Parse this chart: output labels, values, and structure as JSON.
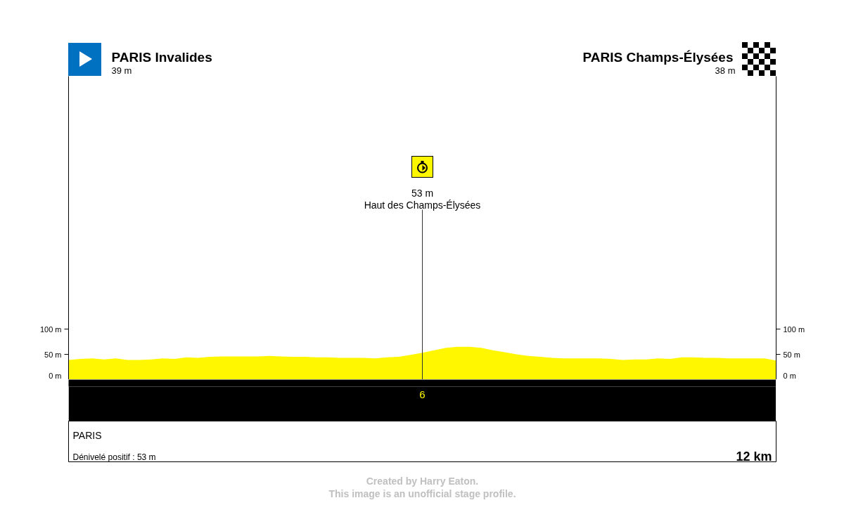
{
  "chart_data": {
    "type": "area",
    "color": "#fff700",
    "categories": [
      null,
      null,
      null,
      null,
      null,
      null,
      null,
      null,
      null,
      null,
      null,
      null,
      null,
      null,
      null,
      null,
      null,
      null,
      null,
      null,
      null,
      null,
      null,
      null,
      null,
      null,
      null,
      null,
      null,
      null,
      "6",
      null,
      null,
      null,
      null,
      null,
      null,
      null,
      null,
      null,
      null,
      null,
      null,
      null,
      null,
      null,
      null,
      null,
      null,
      null,
      null,
      null,
      null,
      null,
      null,
      null,
      null,
      null,
      null,
      null,
      null
    ],
    "values": [
      39,
      41,
      42,
      40,
      42,
      39,
      39,
      40,
      42,
      41,
      44,
      43,
      45,
      46,
      46,
      46,
      46,
      47,
      46,
      45,
      45,
      44,
      44,
      43,
      43,
      43,
      42,
      44,
      45,
      49,
      53,
      58,
      63,
      65,
      65,
      63,
      58,
      54,
      50,
      47,
      45,
      43,
      42,
      42,
      42,
      42,
      41,
      39,
      40,
      40,
      42,
      41,
      44,
      44,
      43,
      43,
      42,
      42,
      42,
      42,
      38
    ],
    "ylim": [
      0,
      600
    ],
    "yticks": [
      {
        "value": 0,
        "label": "0 m"
      },
      {
        "value": 50,
        "label": "50 m"
      },
      {
        "value": 100,
        "label": "100 m"
      }
    ],
    "y2lim": [
      0,
      600
    ],
    "y2ticks": [
      {
        "value": 0,
        "label": "0 m"
      },
      {
        "value": 50,
        "label": "50 m"
      },
      {
        "value": 100,
        "label": "100 m"
      }
    ],
    "ref_lines": [
      {
        "axis": "x",
        "value": "6",
        "label": "Haut des Champs-Élysées",
        "color": "#333333"
      }
    ],
    "annotations": [
      "PARIS Invalides",
      "39 m",
      "PARIS Champs-Élysées",
      "38 m",
      "53 m",
      "PARIS",
      "Dénivelé positif : 53 m",
      "12 km",
      "Created by Harry Eaton.",
      "This image is an unofficial stage profile."
    ]
  }
}
